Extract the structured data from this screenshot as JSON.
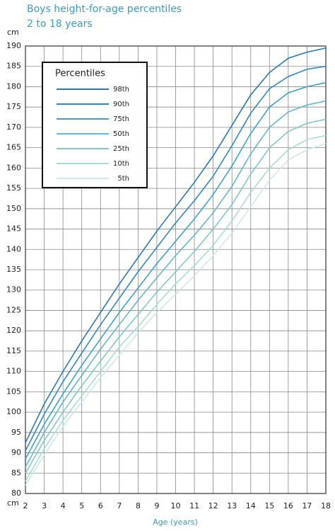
{
  "chart_data": {
    "type": "line",
    "title": "Boys height-for-age percentiles",
    "subtitle": "2 to 18 years",
    "xlabel": "Age (years)",
    "ylabel": "cm",
    "legend_title": "Percentiles",
    "legend": "top-left",
    "grid": true,
    "x": [
      2,
      3,
      4,
      5,
      6,
      7,
      8,
      9,
      10,
      11,
      12,
      13,
      14,
      15,
      16,
      17,
      18
    ],
    "xlim": [
      2,
      18
    ],
    "xticks": [
      2,
      3,
      4,
      5,
      6,
      7,
      8,
      9,
      10,
      11,
      12,
      13,
      14,
      15,
      16,
      17,
      18
    ],
    "ylim": [
      80,
      190
    ],
    "yticks": [
      80,
      85,
      90,
      95,
      100,
      105,
      110,
      115,
      120,
      125,
      130,
      135,
      140,
      145,
      150,
      155,
      160,
      165,
      170,
      175,
      180,
      185,
      190
    ],
    "series": [
      {
        "name": "98th",
        "color": "#2a78b6",
        "values": [
          92.5,
          102,
          110,
          117.5,
          124.5,
          131.5,
          138,
          144.5,
          150.5,
          156.5,
          163,
          170.5,
          178,
          183.5,
          187,
          188.5,
          189.5
        ]
      },
      {
        "name": "90th",
        "color": "#2f88c2",
        "values": [
          90.5,
          99.5,
          107.5,
          114.5,
          121.5,
          128,
          134.5,
          140.5,
          146.5,
          152,
          158,
          165.5,
          173.5,
          179.5,
          182.5,
          184.3,
          185
        ]
      },
      {
        "name": "75th",
        "color": "#3ea2cc",
        "values": [
          88.5,
          97,
          104.5,
          111.5,
          118,
          124.5,
          130.5,
          136.5,
          142,
          147.5,
          153.5,
          160.5,
          168.5,
          175,
          178.5,
          180,
          181
        ]
      },
      {
        "name": "50th",
        "color": "#62b8d4",
        "values": [
          86.5,
          95,
          102.5,
          109,
          115.5,
          121.5,
          127.5,
          133,
          138.5,
          143.5,
          149,
          155.5,
          163.5,
          170,
          173.8,
          175.5,
          176.5
        ]
      },
      {
        "name": "25th",
        "color": "#80c8cc",
        "values": [
          85,
          93,
          100,
          106.5,
          112.5,
          118.5,
          124,
          129.5,
          134.5,
          139.5,
          145,
          151,
          158.5,
          165,
          169,
          171,
          172
        ]
      },
      {
        "name": "10th",
        "color": "#a8dcd6",
        "values": [
          83,
          91,
          98,
          104,
          110,
          116,
          121,
          126.5,
          131.5,
          136,
          141,
          147,
          154,
          160,
          164.5,
          167,
          168
        ]
      },
      {
        "name": "5th",
        "color": "#cde8ea",
        "values": [
          82,
          89.5,
          96.5,
          102.5,
          108.5,
          114,
          119.5,
          124.5,
          129,
          133.5,
          138.5,
          144,
          150.5,
          157,
          162,
          164.5,
          166
        ]
      }
    ]
  }
}
